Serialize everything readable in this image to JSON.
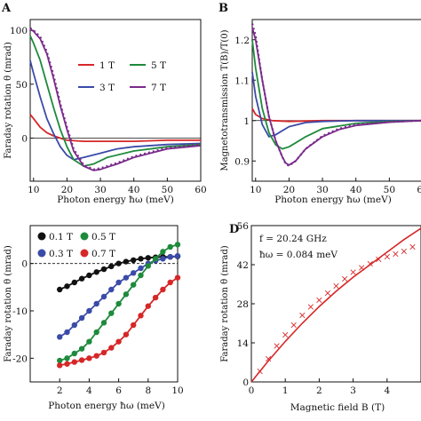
{
  "chart_data": [
    {
      "panel": "A",
      "type": "line",
      "xlabel": "Photon energy ħω (meV)",
      "ylabel": "Faraday rotation θ (mrad)",
      "xlim": [
        9,
        60
      ],
      "ylim": [
        -40,
        110
      ],
      "xticks": [
        10,
        20,
        30,
        40,
        50,
        60
      ],
      "yticks": [
        0,
        50,
        100
      ],
      "grid": false,
      "legend_placement": "inside-right",
      "series": [
        {
          "name": "1 T",
          "color": "#d62728",
          "x": [
            9,
            10,
            12,
            14,
            16,
            18,
            20,
            25,
            30,
            40,
            50,
            60
          ],
          "y": [
            22,
            18,
            10,
            5,
            2,
            0,
            -2,
            -3,
            -3,
            -3,
            -2,
            -2
          ]
        },
        {
          "name": "3 T",
          "color": "#3b4ba8",
          "x": [
            9,
            10,
            12,
            14,
            16,
            18,
            20,
            22,
            25,
            30,
            35,
            40,
            50,
            60
          ],
          "y": [
            72,
            60,
            38,
            18,
            4,
            -8,
            -16,
            -20,
            -18,
            -14,
            -10,
            -8,
            -6,
            -5
          ]
        },
        {
          "name": "5 T",
          "color": "#1e8a3c",
          "x": [
            9,
            10,
            12,
            14,
            16,
            18,
            20,
            22,
            25,
            28,
            32,
            40,
            50,
            60
          ],
          "y": [
            95,
            88,
            72,
            50,
            28,
            8,
            -8,
            -20,
            -26,
            -24,
            -18,
            -12,
            -8,
            -6
          ]
        },
        {
          "name": "7 T",
          "color": "#7a2a8a",
          "x": [
            9,
            10,
            12,
            14,
            16,
            18,
            20,
            22,
            25,
            28,
            30,
            35,
            40,
            50,
            60
          ],
          "y": [
            101,
            99,
            92,
            78,
            55,
            30,
            8,
            -12,
            -26,
            -30,
            -29,
            -24,
            -18,
            -10,
            -7
          ]
        },
        {
          "name": "",
          "style": "dotted",
          "color": "#7a2a8a",
          "x": [
            9,
            10,
            12,
            14,
            16,
            18,
            20,
            22,
            25,
            28,
            30,
            35,
            40,
            50,
            60
          ],
          "y": [
            102,
            100,
            94,
            80,
            58,
            32,
            10,
            -10,
            -25,
            -29,
            -28,
            -23,
            -17,
            -9,
            -6
          ]
        }
      ],
      "reference_line": 0
    },
    {
      "panel": "B",
      "type": "line",
      "xlabel": "Photon energy ħω (meV)",
      "ylabel": "Magnetotransmission T(B)/T(0)",
      "xlim": [
        9,
        60
      ],
      "ylim": [
        0.85,
        1.25
      ],
      "xticks": [
        10,
        20,
        30,
        40,
        50,
        60
      ],
      "yticks": [
        0.9,
        1.0,
        1.1,
        1.2
      ],
      "grid": false,
      "series": [
        {
          "name": "1 T",
          "color": "#d62728",
          "x": [
            9,
            10,
            12,
            15,
            20,
            30,
            40,
            50,
            60
          ],
          "y": [
            1.03,
            1.015,
            1.005,
            1.0,
            0.998,
            1.0,
            1.0,
            1.0,
            1.0
          ]
        },
        {
          "name": "3 T",
          "color": "#3b4ba8",
          "x": [
            9,
            10,
            12,
            14,
            16,
            18,
            20,
            25,
            30,
            40,
            50,
            60
          ],
          "y": [
            1.12,
            1.06,
            0.99,
            0.96,
            0.965,
            0.975,
            0.985,
            0.995,
            0.998,
            1.0,
            1.0,
            1.0
          ]
        },
        {
          "name": "5 T",
          "color": "#1e8a3c",
          "x": [
            9,
            10,
            12,
            14,
            16,
            18,
            20,
            22,
            25,
            30,
            40,
            50,
            60
          ],
          "y": [
            1.2,
            1.13,
            1.03,
            0.97,
            0.94,
            0.93,
            0.935,
            0.945,
            0.96,
            0.98,
            0.993,
            0.998,
            1.0
          ]
        },
        {
          "name": "7 T",
          "color": "#7a2a8a",
          "x": [
            9,
            10,
            12,
            14,
            16,
            18,
            19,
            20,
            22,
            25,
            30,
            35,
            40,
            50,
            60
          ],
          "y": [
            1.23,
            1.2,
            1.1,
            1.01,
            0.95,
            0.91,
            0.895,
            0.89,
            0.9,
            0.93,
            0.96,
            0.978,
            0.988,
            0.996,
            1.0
          ]
        },
        {
          "name": "",
          "style": "dotted",
          "color": "#7a2a8a",
          "x": [
            9,
            10,
            12,
            14,
            16,
            18,
            19,
            20,
            22,
            25,
            30,
            35,
            40,
            50,
            60
          ],
          "y": [
            1.24,
            1.21,
            1.1,
            1.01,
            0.95,
            0.91,
            0.893,
            0.888,
            0.9,
            0.93,
            0.962,
            0.98,
            0.99,
            0.997,
            1.0
          ]
        }
      ],
      "reference_line": 1.0
    },
    {
      "panel": "C",
      "type": "line",
      "xlabel": "Photon energy ħω (meV)",
      "ylabel": "Faraday rotation θ (mrad)",
      "xlim": [
        0,
        10
      ],
      "ylim": [
        -25,
        8
      ],
      "xticks": [
        2,
        4,
        6,
        8,
        10
      ],
      "yticks": [
        -20,
        -10,
        0
      ],
      "grid": false,
      "legend_placement": "top-left",
      "series": [
        {
          "name": "0.1 T",
          "color": "#111111",
          "x": [
            2,
            2.5,
            3,
            3.5,
            4,
            4.5,
            5,
            5.5,
            6,
            6.5,
            7,
            7.5,
            8,
            8.5,
            9,
            9.5,
            10
          ],
          "y": [
            -5.5,
            -4.8,
            -4,
            -3.2,
            -2.5,
            -1.8,
            -1.2,
            -0.6,
            0,
            0.4,
            0.7,
            1,
            1.2,
            1.3,
            1.4,
            1.4,
            1.5
          ]
        },
        {
          "name": "0.3 T",
          "color": "#3b4ba8",
          "x": [
            2,
            2.5,
            3,
            3.5,
            4,
            4.5,
            5,
            5.5,
            6,
            6.5,
            7,
            7.5,
            8,
            8.5,
            9,
            9.5,
            10
          ],
          "y": [
            -15.5,
            -14.5,
            -13,
            -11.5,
            -10,
            -8.5,
            -7,
            -5.5,
            -4,
            -3,
            -2,
            -1,
            0,
            0.6,
            1,
            1.4,
            1.6
          ]
        },
        {
          "name": "0.5 T",
          "color": "#1e8a3c",
          "x": [
            2,
            2.5,
            3,
            3.5,
            4,
            4.5,
            5,
            5.5,
            6,
            6.5,
            7,
            7.5,
            8,
            8.5,
            9,
            9.5,
            10
          ],
          "y": [
            -20.5,
            -20,
            -19,
            -18,
            -16.5,
            -14.5,
            -12.5,
            -10.5,
            -8.5,
            -6.5,
            -4.5,
            -2.5,
            -0.5,
            1,
            2.5,
            3.5,
            4
          ]
        },
        {
          "name": "0.7 T",
          "color": "#d62728",
          "x": [
            2,
            2.5,
            3,
            3.5,
            4,
            4.5,
            5,
            5.5,
            6,
            6.5,
            7,
            7.5,
            8,
            8.5,
            9,
            9.5,
            10
          ],
          "y": [
            -21.5,
            -21.2,
            -20.8,
            -20.4,
            -20,
            -19.5,
            -18.8,
            -17.8,
            -16.5,
            -15,
            -13,
            -11,
            -9,
            -7.2,
            -5.5,
            -4,
            -3
          ]
        }
      ],
      "reference_line": 0
    },
    {
      "panel": "D",
      "type": "scatter",
      "xlabel": "Magnetic field B (T)",
      "ylabel": "Faraday rotation θ (mrad)",
      "xlim": [
        0,
        5
      ],
      "ylim": [
        0,
        56
      ],
      "xticks": [
        0,
        1,
        2,
        3,
        4
      ],
      "yticks": [
        0,
        14,
        28,
        42,
        56
      ],
      "grid": false,
      "annotation_f": "f = 20.24 GHz",
      "annotation_hw": "ħω = 0.084 meV",
      "points": {
        "color": "#d62728",
        "x": [
          0.25,
          0.5,
          0.75,
          1.0,
          1.25,
          1.5,
          1.75,
          2.0,
          2.25,
          2.5,
          2.75,
          3.0,
          3.25,
          3.5,
          3.75,
          4.0,
          4.25,
          4.5,
          4.75
        ],
        "y": [
          4,
          8.5,
          13,
          17,
          20.5,
          24,
          27,
          29.5,
          32,
          34.5,
          37,
          39.5,
          41,
          42.5,
          44,
          45,
          46,
          47,
          48.5
        ]
      },
      "fit": {
        "color": "#d62728",
        "x": [
          0,
          0.5,
          1,
          1.5,
          2,
          2.5,
          3,
          3.5,
          4,
          4.5,
          5
        ],
        "y": [
          0,
          7.5,
          14.5,
          21,
          27,
          32.5,
          37.5,
          42,
          46.5,
          51,
          55
        ]
      }
    }
  ],
  "labels": {
    "A": "A",
    "B": "B",
    "C": "C",
    "D": "D"
  },
  "axis_text": {
    "a_xlabel": "Photon energy ħω (meV)",
    "a_ylabel": "Faraday rotation θ (mrad)",
    "b_xlabel": "Photon energy ħω (meV)",
    "b_ylabel": "Magnetotransmission T(B)/T(0)",
    "c_xlabel": "Photon energy ħω (meV)",
    "c_ylabel": "Faraday rotation θ (mrad)",
    "d_xlabel": "Magnetic field B (T)",
    "d_ylabel": "Faraday rotation θ (mrad)"
  },
  "legend_a": {
    "l1": "1 T",
    "l3": "3 T",
    "l5": "5 T",
    "l7": "7 T"
  },
  "legend_c": {
    "l01": "0.1 T",
    "l03": "0.3 T",
    "l05": "0.5 T",
    "l07": "0.7 T"
  },
  "annotation_d": {
    "f": "f = 20.24 GHz",
    "hw": "ħω = 0.084 meV"
  }
}
